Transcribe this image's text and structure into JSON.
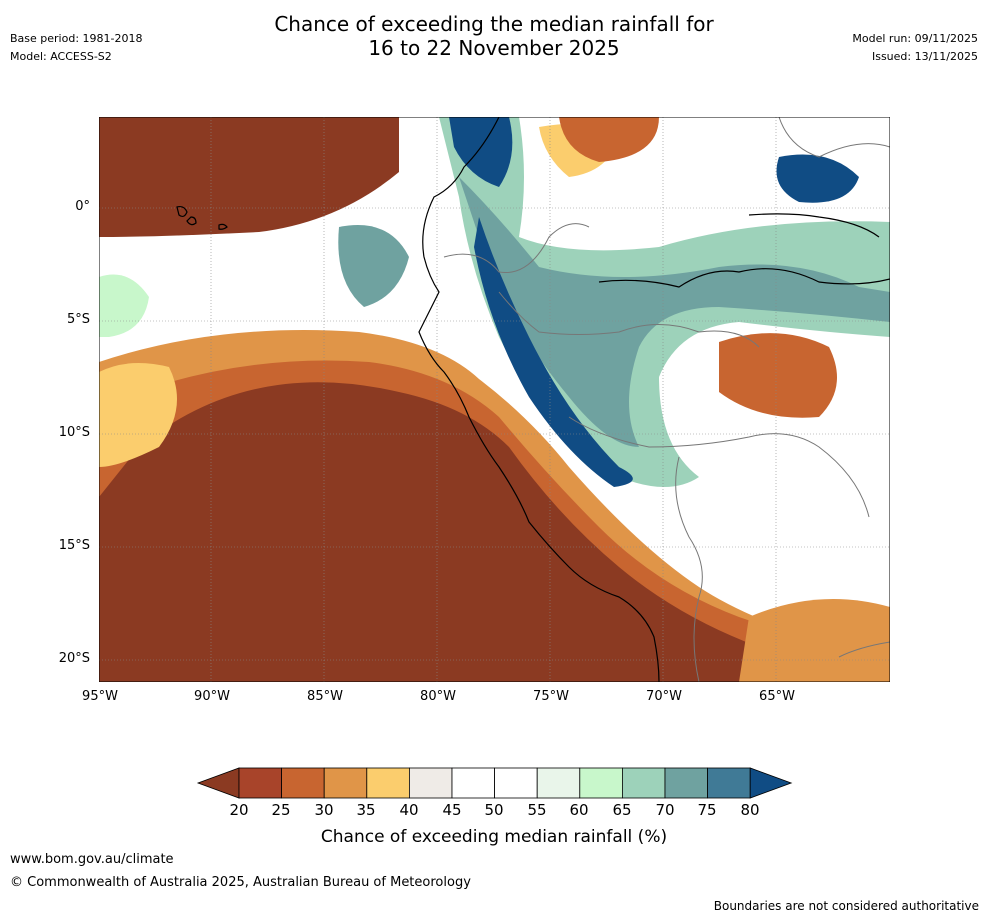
{
  "title_line1": "Chance of exceeding the median rainfall for",
  "title_line2": "16 to 22 November 2025",
  "base_period": "Base period: 1981-2018",
  "model": "Model: ACCESS-S2",
  "model_run": "Model run: 09/11/2025",
  "issued": "Issued: 13/11/2025",
  "lat_labels": [
    "0°",
    "5°S",
    "10°S",
    "15°S",
    "20°S"
  ],
  "lon_labels": [
    "95°W",
    "90°W",
    "85°W",
    "80°W",
    "75°W",
    "70°W",
    "65°W"
  ],
  "colorbar": {
    "ticks": [
      "20",
      "25",
      "30",
      "35",
      "40",
      "45",
      "50",
      "55",
      "60",
      "65",
      "70",
      "75",
      "80"
    ],
    "colors": [
      "#8b3a22",
      "#a8442a",
      "#c86530",
      "#e09548",
      "#fbcd6d",
      "#efebe7",
      "#ffffff",
      "#ffffff",
      "#e9f5ea",
      "#c8f7cb",
      "#9dd2ba",
      "#6fa2a0",
      "#407a96",
      "#104c84"
    ],
    "title": "Chance of exceeding median rainfall (%)"
  },
  "website": "www.bom.gov.au/climate",
  "copyright": "© Commonwealth of Australia 2025, Australian Bureau of Meteorology",
  "disclaimer": "Boundaries are not considered authoritative"
}
